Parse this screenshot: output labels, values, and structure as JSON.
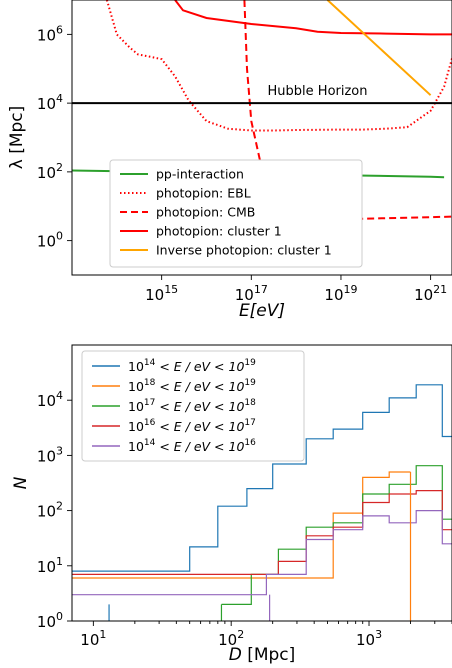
{
  "chart_data": [
    {
      "type": "line",
      "xscale": "log",
      "yscale": "log",
      "xlabel": "E[eV]",
      "ylabel": "λ [Mpc]",
      "xlim": [
        10000000000000.0,
        3e+21
      ],
      "ylim": [
        0.1,
        10000000.0
      ],
      "xticks": [
        {
          "value": 1000000000000000.0,
          "base": "10",
          "exp": "15"
        },
        {
          "value": 1e+17,
          "base": "10",
          "exp": "17"
        },
        {
          "value": 1e+19,
          "base": "10",
          "exp": "19"
        },
        {
          "value": 1e+21,
          "base": "10",
          "exp": "21"
        }
      ],
      "yticks": [
        {
          "value": 1,
          "base": "10",
          "exp": "0"
        },
        {
          "value": 100,
          "base": "10",
          "exp": "2"
        },
        {
          "value": 10000,
          "base": "10",
          "exp": "4"
        },
        {
          "value": 1000000,
          "base": "10",
          "exp": "6"
        }
      ],
      "annotations": [
        {
          "text": "Hubble Horizon",
          "x": 3e+18,
          "y": 17000
        }
      ],
      "legend": {
        "placement": "lower-left"
      },
      "series": [
        {
          "name": "pp-interaction",
          "color": "#2ca02c",
          "style": "solid",
          "x": [
            10000000000000.0,
            1000000000000000.0,
            1e+17,
            1e+19,
            1e+21,
            2e+21
          ],
          "y": [
            110,
            100,
            90,
            80,
            72,
            70
          ]
        },
        {
          "name": "photopion: EBL",
          "color": "#ff0000",
          "style": "dotted",
          "x": [
            60000000000000.0,
            100000000000000.0,
            200000000000000.0,
            300000000000000.0,
            500000000000000.0,
            1000000000000000.0,
            2000000000000000.0,
            4000000000000000.0,
            1e+16,
            3e+16,
            1e+17,
            3e+17,
            1e+18,
            1e+19,
            3e+19,
            1e+20,
            3e+20,
            1e+21,
            2e+21,
            3e+21
          ],
          "y": [
            10000000.0,
            1000000.0,
            400000,
            260000,
            230000,
            190000,
            60000,
            12000,
            3000,
            1800,
            1600,
            1600,
            1650,
            1700,
            1700,
            1800,
            2000,
            6000,
            30000,
            200000
          ]
        },
        {
          "name": "photopion: CMB",
          "color": "#ff0000",
          "style": "dashed",
          "x": [
            7e+16,
            8e+16,
            1e+17,
            2e+17,
            3e+17,
            5e+17,
            1e+18,
            3e+18,
            1e+19,
            1e+20,
            1e+21,
            3e+21
          ],
          "y": [
            10000000.0,
            100000.0,
            3000,
            50,
            12,
            5,
            4,
            4,
            4.2,
            4.5,
            4.8,
            5
          ]
        },
        {
          "name": "photopion: cluster 1",
          "color": "#ff0000",
          "style": "solid",
          "x": [
            2000000000000000.0,
            3000000000000000.0,
            1e+16,
            1e+17,
            1e+18,
            3e+18,
            1e+19,
            1e+20,
            1e+21,
            3e+21
          ],
          "y": [
            10000000.0,
            5000000.0,
            3000000.0,
            2000000.0,
            1500000.0,
            1200000.0,
            1100000.0,
            1050000.0,
            1000000.0,
            1000000.0
          ]
        },
        {
          "name": "Inverse photopion: cluster 1",
          "color": "#ffa500",
          "style": "solid",
          "x": [
            5e+18,
            1e+21
          ],
          "y": [
            10000000.0,
            17000
          ]
        },
        {
          "name": "",
          "color": "#000000",
          "style": "solid",
          "x": [
            10000000000000.0,
            3e+21
          ],
          "y": [
            10000,
            10000
          ]
        }
      ]
    },
    {
      "type": "line",
      "drawstyle": "steps-mid",
      "xscale": "log",
      "yscale": "log",
      "xlabel": "D [Mpc]",
      "ylabel": "N",
      "xlim": [
        7,
        4000
      ],
      "ylim": [
        1,
        100000
      ],
      "xticks": [
        {
          "value": 10,
          "base": "10",
          "exp": "1"
        },
        {
          "value": 100,
          "base": "10",
          "exp": "2"
        },
        {
          "value": 1000,
          "base": "10",
          "exp": "3"
        }
      ],
      "yticks": [
        {
          "value": 1,
          "base": "10",
          "exp": "0"
        },
        {
          "value": 10,
          "base": "10",
          "exp": "1"
        },
        {
          "value": 100,
          "base": "10",
          "exp": "2"
        },
        {
          "value": 1000,
          "base": "10",
          "exp": "3"
        },
        {
          "value": 10000,
          "base": "10",
          "exp": "4"
        }
      ],
      "legend": {
        "placement": "upper-left"
      },
      "series": [
        {
          "name_parts": [
            "10",
            "14",
            " < E / eV < 10",
            "19"
          ],
          "color": "#1f77b4",
          "edges": [
            7,
            50,
            80,
            130,
            200,
            350,
            550,
            900,
            1400,
            2200,
            3400,
            4000
          ],
          "values": [
            8,
            22,
            120,
            250,
            700,
            2000,
            3000,
            6000,
            11000,
            19000,
            2200
          ]
        },
        {
          "name_parts": [
            "10",
            "18",
            " < E / eV < 10",
            "19"
          ],
          "color": "#ff7f0e",
          "edges": [
            7,
            550,
            900,
            1400,
            2000
          ],
          "values": [
            6,
            90,
            400,
            500
          ]
        },
        {
          "name_parts": [
            "10",
            "17",
            " < E / eV < 10",
            "18"
          ],
          "color": "#2ca02c",
          "edges": [
            85,
            140,
            220,
            350,
            550,
            900,
            1400,
            2200,
            3400,
            4000
          ],
          "values": [
            2,
            7,
            20,
            50,
            60,
            200,
            300,
            650,
            70
          ]
        },
        {
          "name_parts": [
            "10",
            "16",
            " < E / eV < 10",
            "17"
          ],
          "color": "#d62728",
          "edges": [
            7,
            220,
            350,
            550,
            900,
            1400,
            2200,
            3400,
            4000
          ],
          "values": [
            7,
            12,
            35,
            50,
            140,
            200,
            230,
            45
          ]
        },
        {
          "name_parts": [
            "10",
            "14",
            " < E / eV < 10",
            "16"
          ],
          "color": "#9467bd",
          "edges": [
            7,
            180,
            350,
            550,
            900,
            1400,
            2200,
            3400,
            4000
          ],
          "values": [
            3,
            7,
            30,
            45,
            80,
            60,
            100,
            25
          ]
        }
      ]
    }
  ]
}
